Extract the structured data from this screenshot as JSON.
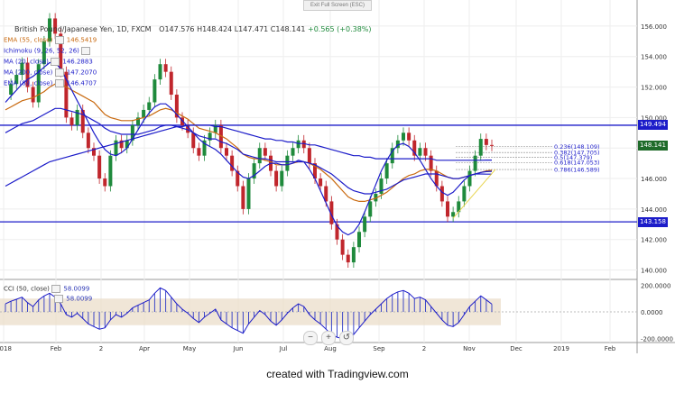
{
  "topbar": {
    "exit_label": "Exit Full Screen (ESC)"
  },
  "header": {
    "symbol": "British Pound/Japanese Yen, 1D, FXCM",
    "ohlc": "O147.576  H148.424  L147.471  C148.141",
    "change": "+0.565 (+0.38%)"
  },
  "legend": [
    {
      "label": "EMA (55, close)",
      "value": "146.5419",
      "color": "#c96a10"
    },
    {
      "label": "Ichimoku (9, 26, 52, 26)",
      "value": "",
      "color": "#1c1cc9"
    },
    {
      "label": "MA (20, close)",
      "value": "146.2883",
      "color": "#1c1cc9"
    },
    {
      "label": "MA (200, close)",
      "value": "147.2070",
      "color": "#1c1cc9"
    },
    {
      "label": "EMA (89, close)",
      "value": "146.4707",
      "color": "#1c1cc9"
    }
  ],
  "fib_labels": [
    {
      "label": "0.236(148.109)",
      "price": 148.109
    },
    {
      "label": "0.382(147.705)",
      "price": 147.705
    },
    {
      "label": "0.5(147.379)",
      "price": 147.379
    },
    {
      "label": "0.618(147.053)",
      "price": 147.053
    },
    {
      "label": "0.786(146.589)",
      "price": 146.589
    }
  ],
  "price_badges": [
    {
      "label": "149.494",
      "price": 149.494,
      "color": "#1c1cc9"
    },
    {
      "label": "148.141",
      "price": 148.141,
      "color": "#1f6b2a"
    },
    {
      "label": "143.158",
      "price": 143.158,
      "color": "#1c1cc9"
    }
  ],
  "cci": {
    "label": "CCI (50, close)",
    "value": "58.0099",
    "value2": "58.0099"
  },
  "zoom": {
    "minus": "−",
    "plus": "+",
    "reset": "↺"
  },
  "footer": {
    "text": "created with Tradingview.com"
  },
  "chart_data": [
    {
      "type": "line",
      "title": "British Pound/Japanese Yen, 1D, FXCM",
      "ylim": [
        139.5,
        157.0
      ],
      "y_ticks": [
        {
          "v": 156.0,
          "l": "156.000"
        },
        {
          "v": 154.0,
          "l": "154.000"
        },
        {
          "v": 152.0,
          "l": "152.000"
        },
        {
          "v": 150.0,
          "l": "150.000"
        },
        {
          "v": 148.0,
          "l": "148.000"
        },
        {
          "v": 146.0,
          "l": "146.000"
        },
        {
          "v": 144.0,
          "l": "144.000"
        },
        {
          "v": 142.0,
          "l": "142.000"
        },
        {
          "v": 140.0,
          "l": "140.000"
        }
      ],
      "x_ticks": [
        "2018",
        "Feb",
        "2",
        "Apr",
        "May",
        "Jun",
        "Jul",
        "Aug",
        "Sep",
        "2",
        "Nov",
        "Dec",
        "2019",
        "Feb"
      ],
      "horizontal_lines": [
        149.494,
        143.158
      ],
      "series": [
        {
          "role": "close",
          "values": [
            151.5,
            152.2,
            152.8,
            153.6,
            152.0,
            151.0,
            153.5,
            155.0,
            156.5,
            155.5,
            153.0,
            150.0,
            149.5,
            150.5,
            149.0,
            148.0,
            147.5,
            146.0,
            145.5,
            147.5,
            148.5,
            148.0,
            148.5,
            149.5,
            150.0,
            150.5,
            151.0,
            152.5,
            153.5,
            153.0,
            151.5,
            150.0,
            149.5,
            149.0,
            148.0,
            147.5,
            148.5,
            149.0,
            149.5,
            148.0,
            147.5,
            146.5,
            145.5,
            144.0,
            146.0,
            147.0,
            148.0,
            147.5,
            146.5,
            145.5,
            146.5,
            147.5,
            148.0,
            148.5,
            148.0,
            147.0,
            146.0,
            145.5,
            144.5,
            143.0,
            142.0,
            141.0,
            140.5,
            141.5,
            142.5,
            143.5,
            144.5,
            145.0,
            146.0,
            147.0,
            148.0,
            148.5,
            149.0,
            148.5,
            147.5,
            148.0,
            147.5,
            146.5,
            145.5,
            144.5,
            143.5,
            143.8,
            144.5,
            145.5,
            146.5,
            147.5,
            148.6,
            148.2,
            148.14
          ]
        },
        {
          "role": "ema-55",
          "color": "#c96a10",
          "values": [
            150.5,
            150.7,
            150.9,
            151.1,
            151.2,
            151.3,
            151.5,
            151.7,
            152.0,
            152.2,
            152.2,
            152.0,
            151.8,
            151.6,
            151.4,
            151.2,
            151.0,
            150.6,
            150.2,
            150.0,
            149.9,
            149.8,
            149.8,
            149.8,
            149.9,
            150.0,
            150.1,
            150.3,
            150.5,
            150.6,
            150.5,
            150.3,
            150.1,
            149.9,
            149.6,
            149.3,
            149.2,
            149.1,
            149.0,
            148.8,
            148.6,
            148.3,
            148.0,
            147.6,
            147.4,
            147.3,
            147.3,
            147.2,
            147.1,
            146.9,
            146.9,
            146.9,
            147.0,
            147.1,
            147.1,
            147.0,
            146.8,
            146.6,
            146.3,
            146.0,
            145.6,
            145.2,
            144.8,
            144.6,
            144.5,
            144.5,
            144.6,
            144.7,
            144.9,
            145.1,
            145.4,
            145.7,
            146.0,
            146.2,
            146.3,
            146.5,
            146.6,
            146.6,
            146.5,
            146.3,
            146.1,
            146.0,
            146.0,
            146.1,
            146.2,
            146.3,
            146.4,
            146.5,
            146.54
          ]
        },
        {
          "role": "ma-20",
          "color": "#1c1cc9",
          "values": [
            151.0,
            151.4,
            151.8,
            152.2,
            152.5,
            152.7,
            153.0,
            153.3,
            153.6,
            153.6,
            153.2,
            152.5,
            151.8,
            151.1,
            150.4,
            149.7,
            149.0,
            148.4,
            147.9,
            147.6,
            147.5,
            147.7,
            148.0,
            148.6,
            149.2,
            149.8,
            150.3,
            150.7,
            150.9,
            150.9,
            150.6,
            150.2,
            149.8,
            149.4,
            149.0,
            148.6,
            148.3,
            148.1,
            147.9,
            147.6,
            147.2,
            146.8,
            146.4,
            146.1,
            146.0,
            146.2,
            146.5,
            146.8,
            147.0,
            147.0,
            146.9,
            146.9,
            147.0,
            147.2,
            147.1,
            146.6,
            146.0,
            145.2,
            144.4,
            143.6,
            142.9,
            142.5,
            142.3,
            142.5,
            143.0,
            143.8,
            144.7,
            145.6,
            146.5,
            147.2,
            147.8,
            148.2,
            148.3,
            148.1,
            147.7,
            147.2,
            146.6,
            146.0,
            145.5,
            145.1,
            144.9,
            145.1,
            145.5,
            145.9,
            146.2,
            146.3,
            146.3,
            146.29,
            146.29
          ]
        },
        {
          "role": "ma-200",
          "color": "#1c1cc9",
          "values": [
            145.5,
            145.7,
            145.9,
            146.1,
            146.3,
            146.5,
            146.7,
            146.9,
            147.1,
            147.2,
            147.3,
            147.4,
            147.5,
            147.6,
            147.7,
            147.8,
            147.9,
            148.0,
            148.1,
            148.2,
            148.3,
            148.4,
            148.5,
            148.6,
            148.7,
            148.8,
            148.9,
            149.0,
            149.1,
            149.2,
            149.3,
            149.4,
            149.4,
            149.5,
            149.5,
            149.5,
            149.5,
            149.5,
            149.4,
            149.4,
            149.3,
            149.2,
            149.1,
            149.0,
            148.9,
            148.8,
            148.7,
            148.6,
            148.6,
            148.5,
            148.5,
            148.4,
            148.4,
            148.3,
            148.3,
            148.2,
            148.2,
            148.1,
            148.0,
            147.9,
            147.8,
            147.7,
            147.6,
            147.5,
            147.5,
            147.4,
            147.4,
            147.3,
            147.3,
            147.3,
            147.3,
            147.3,
            147.3,
            147.3,
            147.3,
            147.3,
            147.3,
            147.3,
            147.2,
            147.2,
            147.2,
            147.2,
            147.2,
            147.2,
            147.2,
            147.2,
            147.2,
            147.21,
            147.21
          ]
        },
        {
          "role": "ema-89",
          "color": "#1c1cc9",
          "values": [
            149.0,
            149.2,
            149.4,
            149.6,
            149.7,
            149.8,
            150.0,
            150.2,
            150.4,
            150.6,
            150.6,
            150.5,
            150.4,
            150.3,
            150.2,
            150.0,
            149.8,
            149.6,
            149.3,
            149.1,
            149.0,
            148.9,
            148.9,
            148.9,
            148.9,
            149.0,
            149.1,
            149.2,
            149.4,
            149.5,
            149.5,
            149.4,
            149.3,
            149.2,
            149.0,
            148.8,
            148.7,
            148.6,
            148.6,
            148.4,
            148.3,
            148.1,
            147.9,
            147.6,
            147.5,
            147.4,
            147.3,
            147.3,
            147.2,
            147.1,
            147.1,
            147.1,
            147.1,
            147.1,
            147.1,
            147.0,
            146.9,
            146.7,
            146.5,
            146.3,
            146.0,
            145.7,
            145.4,
            145.2,
            145.1,
            145.0,
            145.0,
            145.1,
            145.2,
            145.3,
            145.5,
            145.7,
            145.9,
            146.0,
            146.1,
            146.2,
            146.3,
            146.3,
            146.3,
            146.2,
            146.1,
            146.0,
            146.0,
            146.1,
            146.2,
            146.3,
            146.4,
            146.45,
            146.47
          ]
        }
      ]
    },
    {
      "type": "bar",
      "title": "CCI (50, close)",
      "ylim": [
        -230,
        230
      ],
      "y_ticks": [
        {
          "v": 200,
          "l": "200.0000"
        },
        {
          "v": 0,
          "l": "0.0000"
        },
        {
          "v": -200,
          "l": "-200.0000"
        }
      ],
      "band": [
        -100,
        100
      ],
      "values": [
        60,
        80,
        95,
        110,
        70,
        40,
        90,
        120,
        140,
        110,
        60,
        -20,
        -40,
        -10,
        -50,
        -90,
        -110,
        -130,
        -120,
        -60,
        -20,
        -40,
        -10,
        30,
        50,
        70,
        90,
        140,
        180,
        160,
        110,
        60,
        20,
        -10,
        -50,
        -80,
        -40,
        -10,
        20,
        -60,
        -90,
        -120,
        -140,
        -160,
        -90,
        -40,
        10,
        -20,
        -70,
        -100,
        -60,
        -10,
        30,
        60,
        40,
        -20,
        -60,
        -90,
        -130,
        -170,
        -190,
        -200,
        -210,
        -170,
        -120,
        -70,
        -20,
        20,
        60,
        100,
        130,
        150,
        160,
        140,
        100,
        110,
        90,
        40,
        -10,
        -60,
        -100,
        -110,
        -80,
        -20,
        40,
        80,
        120,
        90,
        58
      ]
    }
  ]
}
